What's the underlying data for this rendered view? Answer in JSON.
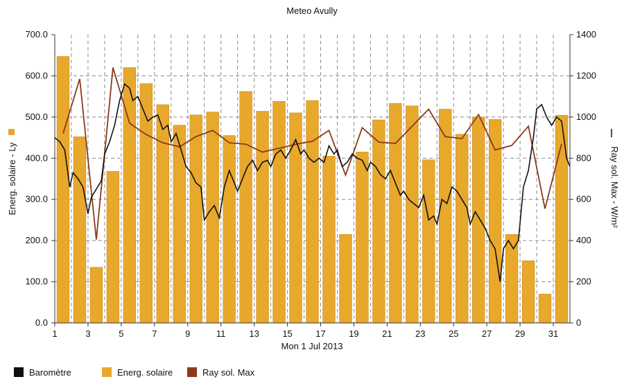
{
  "chart_data": {
    "type": "bar+line",
    "title": "Meteo  Avully",
    "xlabel": "Mon 1 Jul 2013",
    "ylabel_left": "Energ. solaire - Ly",
    "ylabel_right": "Ray sol. Max - W/m²",
    "y_left": {
      "min": 0,
      "max": 700,
      "ticks": [
        "0.0",
        "100.0",
        "200.0",
        "300.0",
        "400.0",
        "500.0",
        "600.0",
        "700.0"
      ]
    },
    "y_right": {
      "min": 0,
      "max": 1400,
      "ticks": [
        "0",
        "200",
        "400",
        "600",
        "800",
        "1000",
        "1200",
        "1400"
      ]
    },
    "x_ticks": [
      "1",
      "3",
      "5",
      "7",
      "9",
      "11",
      "13",
      "15",
      "17",
      "19",
      "21",
      "23",
      "25",
      "27",
      "29",
      "31"
    ],
    "grid": true,
    "colors": {
      "bar": "#e8a82c",
      "bar_edge": "#c98a18",
      "line_max": "#8b3a1a",
      "barometer": "#111111",
      "grid": "#8a8a8a"
    },
    "series": [
      {
        "name": "Energ. solaire",
        "axis": "left",
        "days": [
          1,
          2,
          3,
          4,
          5,
          6,
          7,
          8,
          9,
          10,
          11,
          12,
          13,
          14,
          15,
          16,
          17,
          18,
          19,
          20,
          21,
          22,
          23,
          24,
          25,
          26,
          27,
          28,
          29,
          30,
          31
        ],
        "values": [
          647,
          452,
          135,
          368,
          620,
          581,
          530,
          480,
          505,
          512,
          455,
          562,
          514,
          538,
          510,
          540,
          405,
          215,
          415,
          493,
          533,
          527,
          396,
          519,
          458,
          500,
          494,
          215,
          151,
          70,
          504
        ]
      },
      {
        "name": "Ray sol. Max",
        "axis": "right",
        "days": [
          1,
          2,
          3,
          4,
          5,
          6,
          7,
          8,
          9,
          10,
          11,
          12,
          13,
          14,
          15,
          16,
          17,
          18,
          19,
          20,
          21,
          22,
          23,
          24,
          25,
          26,
          27,
          28,
          29,
          30,
          31
        ],
        "values": [
          920,
          1185,
          405,
          1240,
          970,
          915,
          875,
          855,
          905,
          935,
          875,
          868,
          830,
          848,
          868,
          882,
          935,
          718,
          948,
          878,
          872,
          955,
          1038,
          905,
          895,
          1012,
          840,
          862,
          955,
          555,
          870
        ]
      },
      {
        "name": "Baromètre",
        "axis": "left",
        "x": [
          1.0,
          1.3,
          1.6,
          1.9,
          2.1,
          2.4,
          2.7,
          3.0,
          3.2,
          3.5,
          3.8,
          4.0,
          4.3,
          4.6,
          4.9,
          5.2,
          5.5,
          5.7,
          6.0,
          6.3,
          6.6,
          6.9,
          7.2,
          7.5,
          7.8,
          8.0,
          8.3,
          8.6,
          8.9,
          9.2,
          9.5,
          9.8,
          10.0,
          10.3,
          10.6,
          10.9,
          11.2,
          11.5,
          11.8,
          12.0,
          12.3,
          12.6,
          12.9,
          13.2,
          13.5,
          13.8,
          14.0,
          14.3,
          14.6,
          14.9,
          15.2,
          15.5,
          15.8,
          16.0,
          16.3,
          16.6,
          16.9,
          17.2,
          17.5,
          17.8,
          18.0,
          18.3,
          18.6,
          18.9,
          19.2,
          19.5,
          19.8,
          20.0,
          20.3,
          20.6,
          20.9,
          21.2,
          21.5,
          21.8,
          22.0,
          22.3,
          22.6,
          22.9,
          23.2,
          23.5,
          23.8,
          24.0,
          24.3,
          24.6,
          24.9,
          25.2,
          25.5,
          25.8,
          26.0,
          26.3,
          26.6,
          26.9,
          27.2,
          27.5,
          27.8,
          28.0,
          28.3,
          28.6,
          28.9,
          29.2,
          29.5,
          29.8,
          30.0,
          30.3,
          30.6,
          30.9,
          31.2,
          31.5,
          31.8,
          32.0
        ],
        "values": [
          450,
          440,
          420,
          330,
          365,
          350,
          330,
          265,
          305,
          325,
          345,
          410,
          440,
          480,
          540,
          580,
          570,
          540,
          550,
          520,
          490,
          500,
          505,
          470,
          480,
          440,
          460,
          420,
          380,
          365,
          340,
          330,
          250,
          270,
          285,
          255,
          330,
          370,
          340,
          320,
          350,
          380,
          395,
          370,
          390,
          395,
          380,
          410,
          420,
          400,
          420,
          445,
          410,
          420,
          400,
          390,
          400,
          390,
          430,
          410,
          420,
          380,
          390,
          410,
          400,
          395,
          370,
          390,
          380,
          360,
          350,
          370,
          340,
          310,
          320,
          300,
          290,
          280,
          310,
          250,
          260,
          240,
          300,
          290,
          330,
          320,
          300,
          280,
          240,
          270,
          250,
          230,
          200,
          180,
          100,
          180,
          200,
          180,
          200,
          330,
          370,
          450,
          520,
          530,
          500,
          480,
          500,
          490,
          400,
          380
        ]
      }
    ]
  }
}
